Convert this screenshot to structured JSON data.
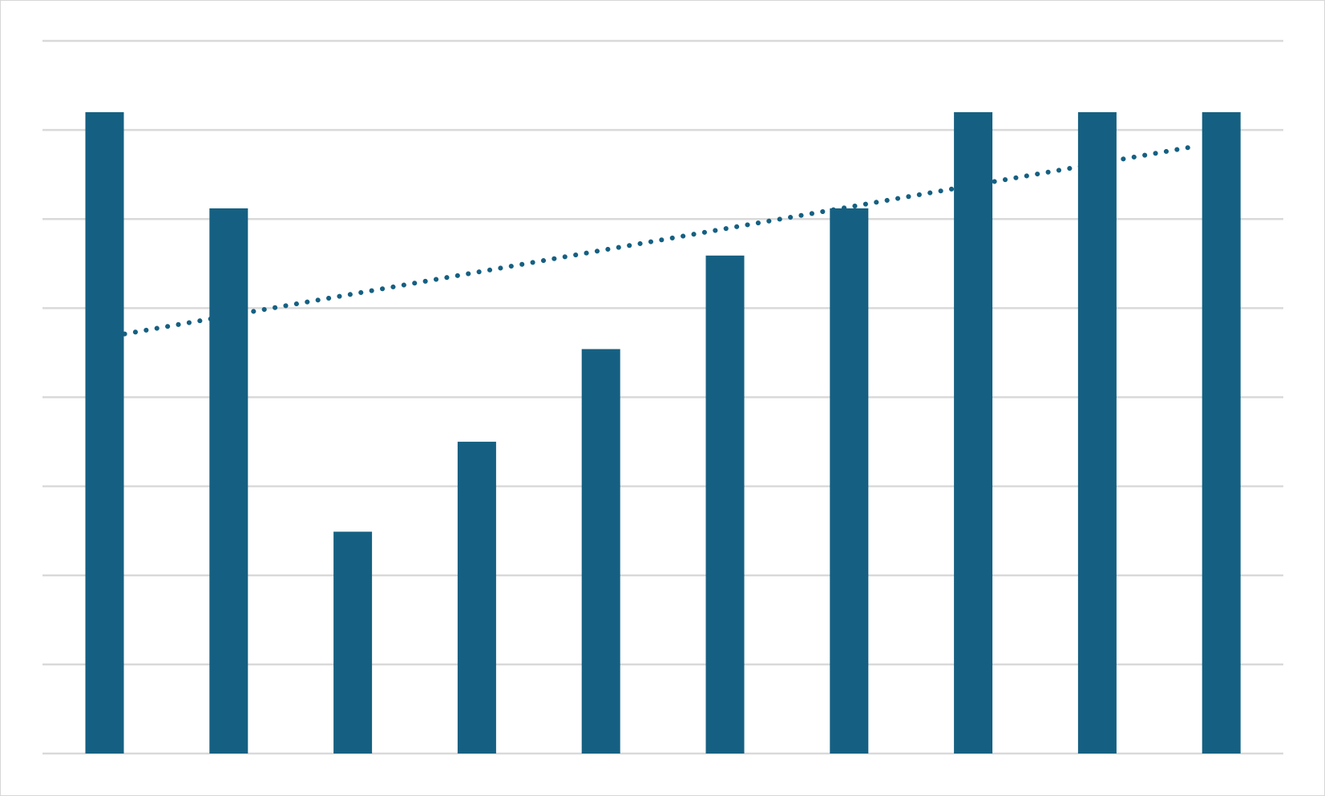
{
  "chart_data": {
    "type": "bar",
    "categories": [
      "",
      "",
      "",
      "",
      "",
      "",
      "",
      "",
      "",
      ""
    ],
    "series": [
      {
        "values": [
          7.2,
          6.12,
          2.49,
          3.5,
          4.54,
          5.59,
          6.12,
          7.2,
          7.2,
          7.2
        ]
      }
    ],
    "trendline": {
      "style": "dotted",
      "start": 4.71,
      "end": 6.82
    },
    "ylim": [
      0,
      8
    ],
    "gridlines": [
      0,
      1,
      2,
      3,
      4,
      5,
      6,
      7,
      8
    ],
    "grid": true,
    "title": "",
    "xlabel": "",
    "ylabel": "",
    "colors": {
      "bar": "#156082",
      "trend": "#156082",
      "grid": "#d9d9d9",
      "border": "#d6d6d6"
    }
  }
}
